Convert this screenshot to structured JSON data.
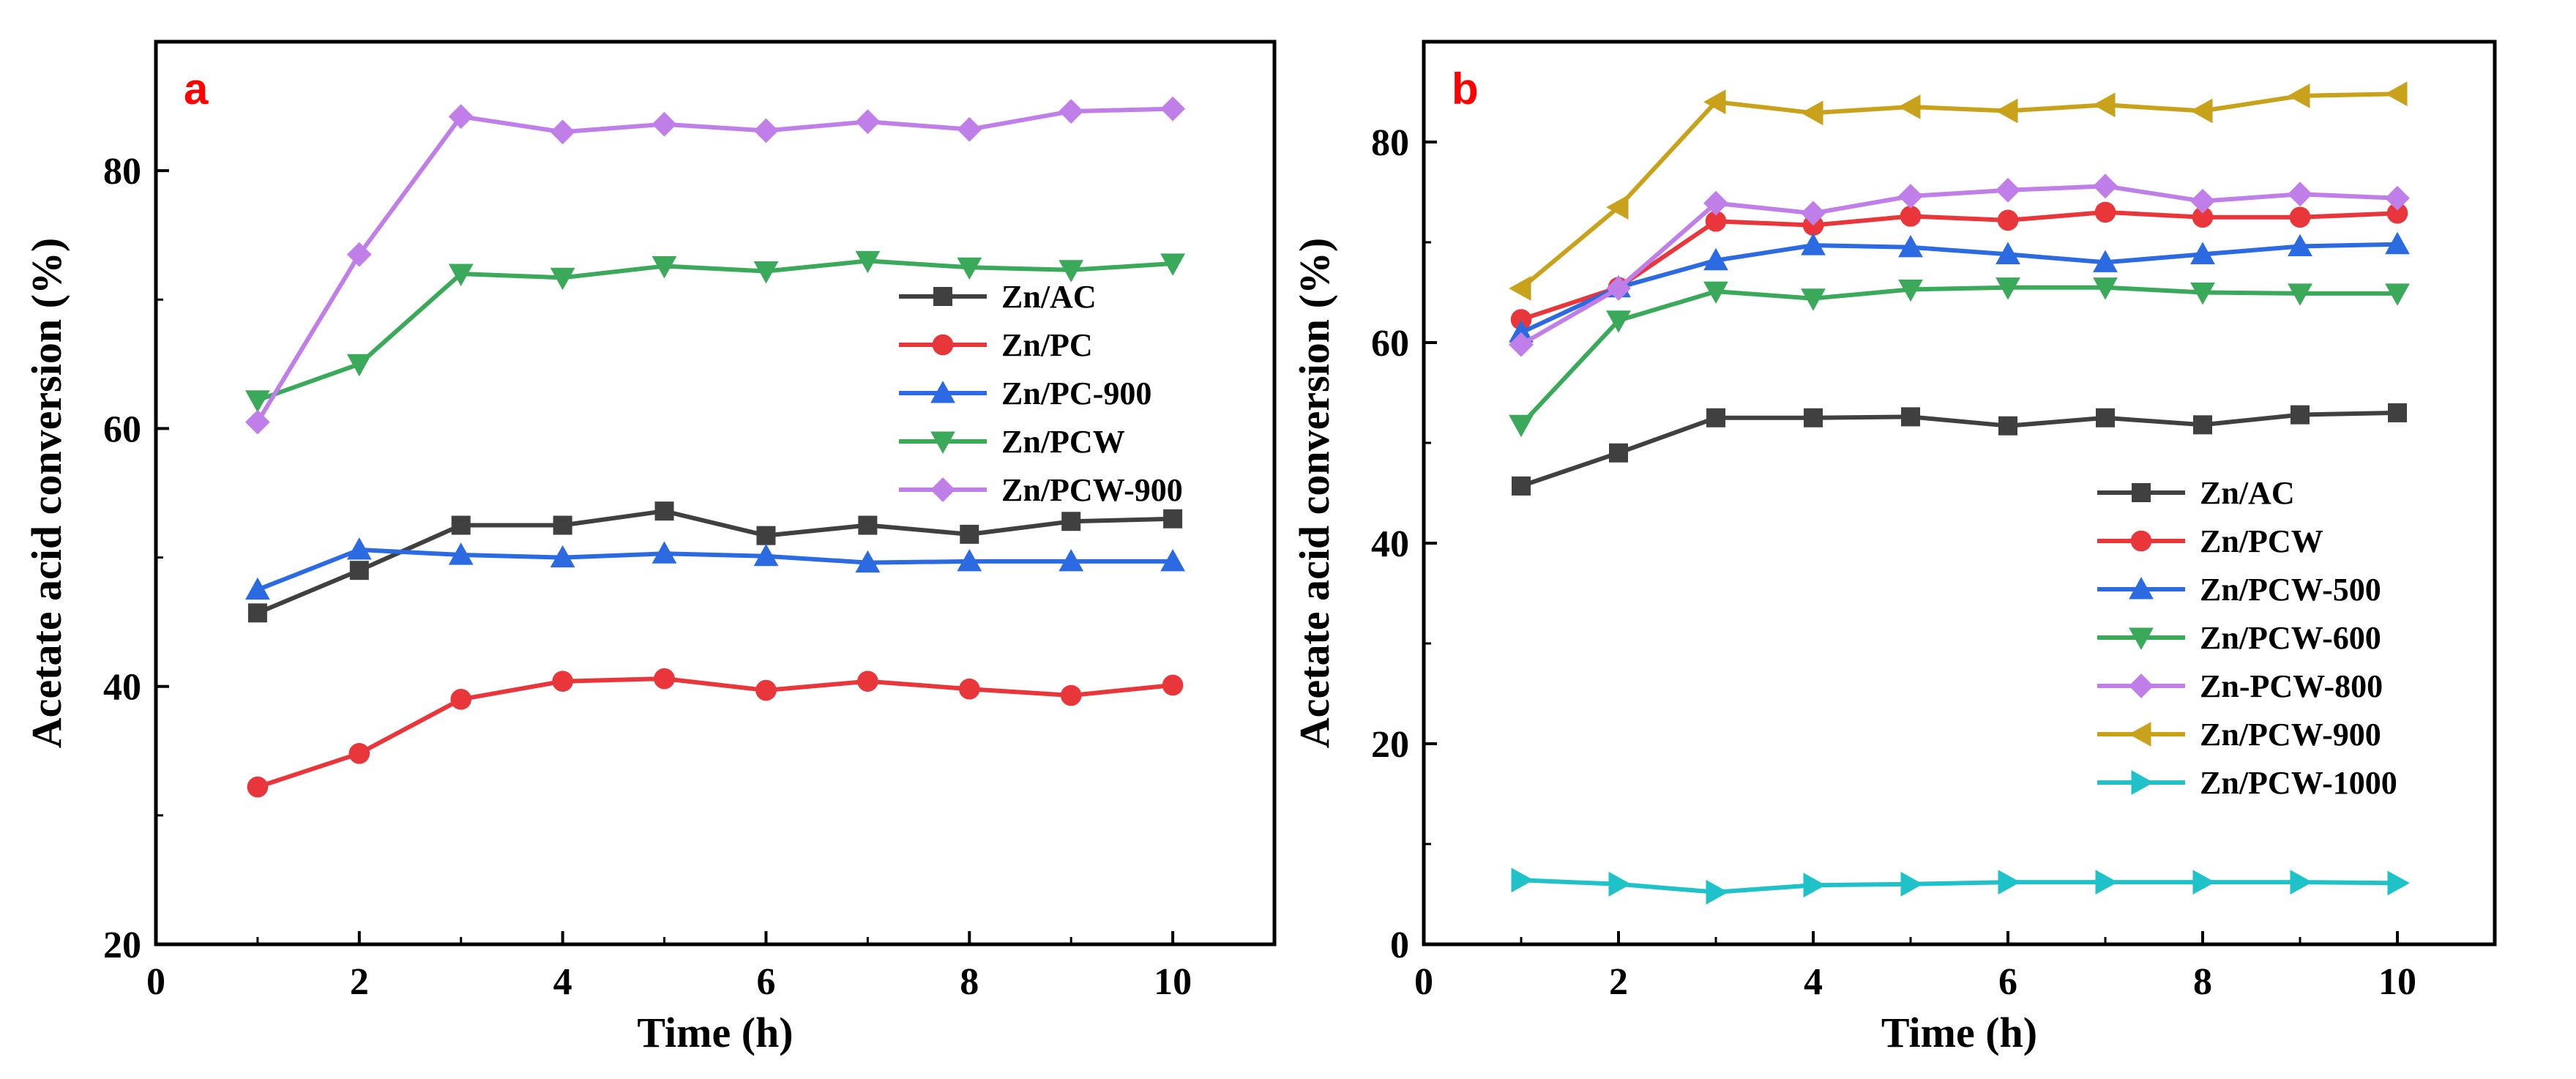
{
  "chart_data": [
    {
      "type": "line",
      "panel_label": "a",
      "xlabel": "Time (h)",
      "ylabel": "Acetate acid conversion (%)",
      "xlim": [
        0,
        11
      ],
      "ylim": [
        20,
        90
      ],
      "xticks": [
        0,
        2,
        4,
        6,
        8,
        10
      ],
      "yticks": [
        20,
        40,
        60,
        80
      ],
      "x": [
        1,
        2,
        3,
        4,
        5,
        6,
        7,
        8,
        9,
        10
      ],
      "legend_position": "center-right",
      "series": [
        {
          "name": "Zn/AC",
          "color": "#404040",
          "marker": "square",
          "values": [
            45.7,
            49.0,
            52.5,
            52.5,
            53.6,
            51.7,
            52.5,
            51.8,
            52.8,
            53.0
          ]
        },
        {
          "name": "Zn/PC",
          "color": "#e8363a",
          "marker": "circle",
          "values": [
            32.2,
            34.8,
            39.0,
            40.4,
            40.6,
            39.7,
            40.4,
            39.8,
            39.3,
            40.1
          ]
        },
        {
          "name": "Zn/PC-900",
          "color": "#2b6ae0",
          "marker": "triangle-up",
          "values": [
            47.5,
            50.6,
            50.2,
            50.0,
            50.3,
            50.1,
            49.6,
            49.7,
            49.7,
            49.7
          ]
        },
        {
          "name": "Zn/PCW",
          "color": "#3aaa5a",
          "marker": "triangle-down",
          "values": [
            62.2,
            65.0,
            72.0,
            71.7,
            72.6,
            72.2,
            73.0,
            72.5,
            72.3,
            72.8
          ]
        },
        {
          "name": "Zn/PCW-900",
          "color": "#c07ee8",
          "marker": "diamond",
          "values": [
            60.5,
            73.5,
            84.2,
            83.0,
            83.6,
            83.1,
            83.8,
            83.2,
            84.6,
            84.8
          ]
        }
      ]
    },
    {
      "type": "line",
      "panel_label": "b",
      "xlabel": "Time (h)",
      "ylabel": "Acetate acid conversion (%)",
      "xlim": [
        0,
        11
      ],
      "ylim": [
        0,
        90
      ],
      "xticks": [
        0,
        2,
        4,
        6,
        8,
        10
      ],
      "yticks": [
        0,
        20,
        40,
        60,
        80
      ],
      "x": [
        1,
        2,
        3,
        4,
        5,
        6,
        7,
        8,
        9,
        10
      ],
      "legend_position": "center-right",
      "series": [
        {
          "name": "Zn/AC",
          "color": "#404040",
          "marker": "square",
          "values": [
            45.7,
            49.0,
            52.5,
            52.5,
            52.6,
            51.7,
            52.5,
            51.8,
            52.8,
            53.0
          ]
        },
        {
          "name": "Zn/PCW",
          "color": "#e8363a",
          "marker": "circle",
          "values": [
            62.3,
            65.5,
            72.1,
            71.7,
            72.6,
            72.2,
            73.0,
            72.5,
            72.5,
            72.9
          ]
        },
        {
          "name": "Zn/PCW-500",
          "color": "#2b6ae0",
          "marker": "triangle-up",
          "values": [
            61.0,
            65.5,
            68.2,
            69.7,
            69.5,
            68.8,
            68.0,
            68.8,
            69.6,
            69.8
          ]
        },
        {
          "name": "Zn/PCW-600",
          "color": "#3aaa5a",
          "marker": "triangle-down",
          "values": [
            51.8,
            62.2,
            65.1,
            64.4,
            65.3,
            65.5,
            65.5,
            65.0,
            64.9,
            64.9
          ]
        },
        {
          "name": "Zn-PCW-800",
          "color": "#c07ee8",
          "marker": "diamond",
          "values": [
            59.8,
            65.4,
            73.9,
            72.9,
            74.6,
            75.2,
            75.6,
            74.1,
            74.8,
            74.4
          ]
        },
        {
          "name": "Zn/PCW-900",
          "color": "#c9a21c",
          "marker": "triangle-left",
          "values": [
            65.4,
            73.5,
            84.0,
            82.9,
            83.5,
            83.1,
            83.7,
            83.1,
            84.6,
            84.8
          ]
        },
        {
          "name": "Zn/PCW-1000",
          "color": "#1fc2c8",
          "marker": "triangle-right",
          "values": [
            6.4,
            6.0,
            5.2,
            5.9,
            6.0,
            6.2,
            6.2,
            6.2,
            6.2,
            6.1
          ]
        }
      ]
    }
  ]
}
